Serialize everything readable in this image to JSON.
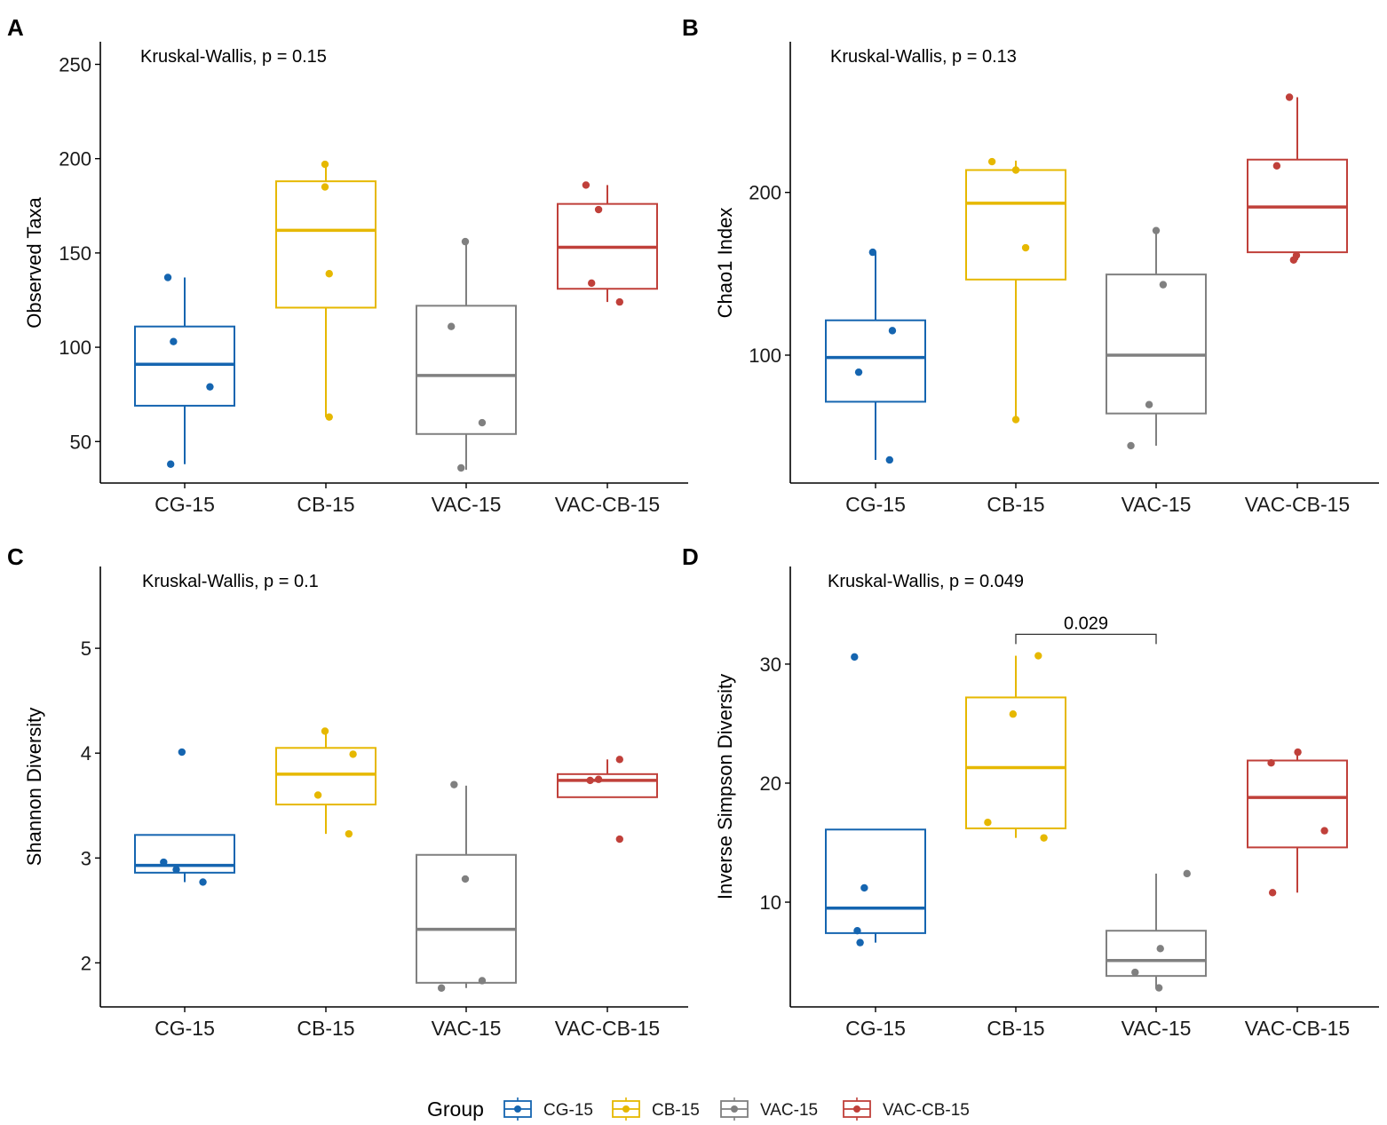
{
  "legend": {
    "title": "Group",
    "items": [
      {
        "label": "CG-15",
        "color": "#1565B0"
      },
      {
        "label": "CB-15",
        "color": "#E6B800"
      },
      {
        "label": "VAC-15",
        "color": "#808080"
      },
      {
        "label": "VAC-CB-15",
        "color": "#C0403A"
      }
    ]
  },
  "chart_data": [
    {
      "type": "boxplot",
      "panel": "A",
      "annotation": "Kruskal-Wallis, p = 0.15",
      "xlabel": "",
      "ylabel": "Observed Taxa",
      "categories": [
        "CG-15",
        "CB-15",
        "VAC-15",
        "VAC-CB-15"
      ],
      "ylim": [
        28,
        262
      ],
      "yticks": [
        50,
        100,
        150,
        200,
        250
      ],
      "boxes": [
        {
          "low": 38,
          "q1": 69,
          "median": 91,
          "q3": 111,
          "high": 137
        },
        {
          "low": 63,
          "q1": 121,
          "median": 162,
          "q3": 188,
          "high": 198
        },
        {
          "low": 35,
          "q1": 54,
          "median": 85,
          "q3": 122,
          "high": 156
        },
        {
          "low": 124,
          "q1": 131,
          "median": 153,
          "q3": 176,
          "high": 186
        }
      ],
      "points": [
        [
          {
            "x": 0.88,
            "y": 137
          },
          {
            "x": 0.92,
            "y": 103
          },
          {
            "x": 1.18,
            "y": 79
          },
          {
            "x": 0.9,
            "y": 38
          }
        ],
        [
          {
            "x": 2.0,
            "y": 197
          },
          {
            "x": 2.0,
            "y": 185
          },
          {
            "x": 2.03,
            "y": 139
          },
          {
            "x": 2.03,
            "y": 63
          }
        ],
        [
          {
            "x": 3.0,
            "y": 156
          },
          {
            "x": 2.9,
            "y": 111
          },
          {
            "x": 3.12,
            "y": 60
          },
          {
            "x": 2.97,
            "y": 36
          }
        ],
        [
          {
            "x": 3.86,
            "y": 186
          },
          {
            "x": 3.95,
            "y": 173
          },
          {
            "x": 3.9,
            "y": 134
          },
          {
            "x": 4.1,
            "y": 124
          }
        ]
      ]
    },
    {
      "type": "boxplot",
      "panel": "B",
      "annotation": "Kruskal-Wallis, p = 0.13",
      "xlabel": "",
      "ylabel": "Chao1 Index",
      "scale": "log",
      "categories": [
        "CG-15",
        "CB-15",
        "VAC-15",
        "VAC-CB-15"
      ],
      "ylim": [
        58,
        380
      ],
      "yticks": [
        100,
        200
      ],
      "boxes": [
        {
          "low": 64,
          "q1": 82,
          "median": 99,
          "q3": 116,
          "high": 155
        },
        {
          "low": 76,
          "q1": 138,
          "median": 191,
          "q3": 220,
          "high": 229
        },
        {
          "low": 68,
          "q1": 78,
          "median": 100,
          "q3": 141,
          "high": 170
        },
        {
          "low": 150,
          "q1": 155,
          "median": 188,
          "q3": 230,
          "high": 300
        }
      ],
      "points": [
        [
          {
            "x": 0.98,
            "y": 155
          },
          {
            "x": 1.12,
            "y": 111
          },
          {
            "x": 0.88,
            "y": 93
          },
          {
            "x": 1.1,
            "y": 64
          }
        ],
        [
          {
            "x": 1.83,
            "y": 228
          },
          {
            "x": 2.0,
            "y": 220
          },
          {
            "x": 2.07,
            "y": 158
          },
          {
            "x": 2.0,
            "y": 76
          }
        ],
        [
          {
            "x": 3.0,
            "y": 170
          },
          {
            "x": 3.05,
            "y": 135
          },
          {
            "x": 2.95,
            "y": 81
          },
          {
            "x": 2.82,
            "y": 68
          }
        ],
        [
          {
            "x": 3.95,
            "y": 300
          },
          {
            "x": 3.86,
            "y": 224
          },
          {
            "x": 4.0,
            "y": 153
          },
          {
            "x": 3.98,
            "y": 150
          }
        ]
      ]
    },
    {
      "type": "boxplot",
      "panel": "C",
      "annotation": "Kruskal-Wallis, p = 0.1",
      "xlabel": "",
      "ylabel": "Shannon Diversity",
      "categories": [
        "CG-15",
        "CB-15",
        "VAC-15",
        "VAC-CB-15"
      ],
      "ylim": [
        1.58,
        5.78
      ],
      "yticks": [
        2,
        3,
        4,
        5
      ],
      "boxes": [
        {
          "low": 2.77,
          "q1": 2.86,
          "median": 2.93,
          "q3": 3.22,
          "high": 3.22
        },
        {
          "low": 3.23,
          "q1": 3.51,
          "median": 3.8,
          "q3": 4.05,
          "high": 4.2
        },
        {
          "low": 1.76,
          "q1": 1.81,
          "median": 2.32,
          "q3": 3.03,
          "high": 3.69
        },
        {
          "low": 3.58,
          "q1": 3.58,
          "median": 3.74,
          "q3": 3.8,
          "high": 3.94
        }
      ],
      "points": [
        [
          {
            "x": 0.98,
            "y": 4.01
          },
          {
            "x": 0.85,
            "y": 2.96
          },
          {
            "x": 0.94,
            "y": 2.89
          },
          {
            "x": 1.13,
            "y": 2.77
          }
        ],
        [
          {
            "x": 2.0,
            "y": 4.21
          },
          {
            "x": 2.2,
            "y": 3.99
          },
          {
            "x": 1.95,
            "y": 3.6
          },
          {
            "x": 2.17,
            "y": 3.23
          }
        ],
        [
          {
            "x": 2.92,
            "y": 3.7
          },
          {
            "x": 3.0,
            "y": 2.8
          },
          {
            "x": 3.12,
            "y": 1.83
          },
          {
            "x": 2.83,
            "y": 1.76
          }
        ],
        [
          {
            "x": 4.1,
            "y": 3.94
          },
          {
            "x": 3.95,
            "y": 3.75
          },
          {
            "x": 3.89,
            "y": 3.74
          },
          {
            "x": 4.1,
            "y": 3.18
          }
        ]
      ]
    },
    {
      "type": "boxplot",
      "panel": "D",
      "annotation": "Kruskal-Wallis, p = 0.049",
      "xlabel": "",
      "ylabel": "Inverse Simpson Diversity",
      "categories": [
        "CG-15",
        "CB-15",
        "VAC-15",
        "VAC-CB-15"
      ],
      "ylim": [
        1.2,
        38.2
      ],
      "yticks": [
        10,
        20,
        30
      ],
      "comparison": {
        "from": "CB-15",
        "to": "VAC-15",
        "label": "0.029",
        "y": 32.5
      },
      "boxes": [
        {
          "low": 6.6,
          "q1": 7.4,
          "median": 9.5,
          "q3": 16.1,
          "high": 16.1
        },
        {
          "low": 15.4,
          "q1": 16.2,
          "median": 21.3,
          "q3": 27.2,
          "high": 30.7
        },
        {
          "low": 2.8,
          "q1": 3.8,
          "median": 5.1,
          "q3": 7.6,
          "high": 12.4
        },
        {
          "low": 10.8,
          "q1": 14.6,
          "median": 18.8,
          "q3": 21.9,
          "high": 22.6
        }
      ],
      "points": [
        [
          {
            "x": 0.85,
            "y": 30.6
          },
          {
            "x": 0.92,
            "y": 11.2
          },
          {
            "x": 0.87,
            "y": 7.6
          },
          {
            "x": 0.89,
            "y": 6.6
          }
        ],
        [
          {
            "x": 2.16,
            "y": 30.7
          },
          {
            "x": 1.98,
            "y": 25.8
          },
          {
            "x": 1.8,
            "y": 16.7
          },
          {
            "x": 2.2,
            "y": 15.4
          }
        ],
        [
          {
            "x": 3.22,
            "y": 12.4
          },
          {
            "x": 3.03,
            "y": 6.1
          },
          {
            "x": 2.85,
            "y": 4.1
          },
          {
            "x": 3.02,
            "y": 2.8
          }
        ],
        [
          {
            "x": 4.01,
            "y": 22.6
          },
          {
            "x": 3.82,
            "y": 21.7
          },
          {
            "x": 4.2,
            "y": 16.0
          },
          {
            "x": 3.83,
            "y": 10.8
          }
        ]
      ]
    }
  ]
}
